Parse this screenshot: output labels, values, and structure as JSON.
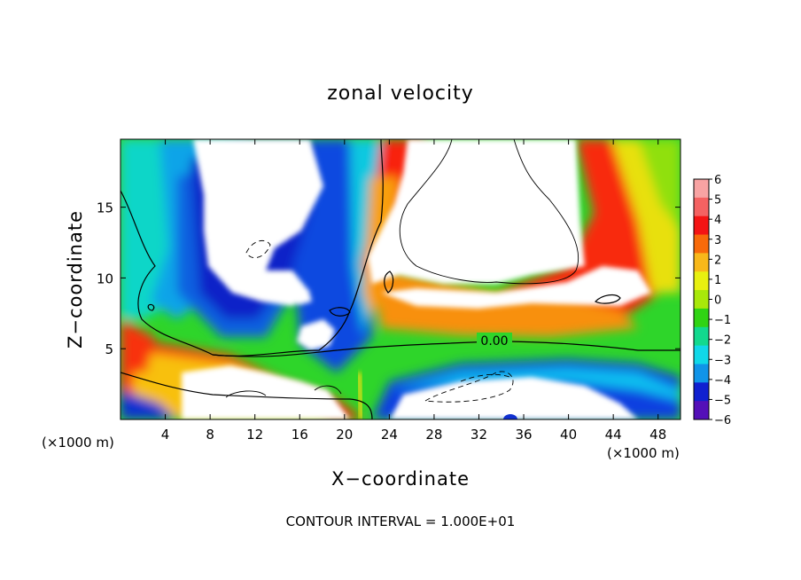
{
  "chart_data": {
    "type": "heatmap",
    "title": "zonal velocity",
    "xlabel": "X−coordinate",
    "ylabel": "Z−coordinate",
    "x_unit": "(×1000 m)",
    "footer": "CONTOUR INTERVAL = 1.000E+01",
    "contour_label": "0.00",
    "x_ticks": [
      4,
      8,
      12,
      16,
      20,
      24,
      28,
      32,
      36,
      40,
      44,
      48
    ],
    "y_ticks": [
      5,
      10,
      15
    ],
    "xlim": [
      0,
      50
    ],
    "ylim": [
      0,
      19.8
    ],
    "colorbar": {
      "ticks": [
        "6",
        "5",
        "4",
        "3",
        "2",
        "1",
        "0",
        "−1",
        "−2",
        "−3",
        "−4",
        "−5",
        "−6"
      ],
      "colors": [
        "#f8a3a3",
        "#f46262",
        "#f41414",
        "#f86a0a",
        "#f8b81a",
        "#e8f010",
        "#a8e80a",
        "#30d414",
        "#12d98e",
        "#10d8e8",
        "#1094e8",
        "#1020d0",
        "#5410b8"
      ]
    },
    "saturation_color": "#ffffff"
  }
}
